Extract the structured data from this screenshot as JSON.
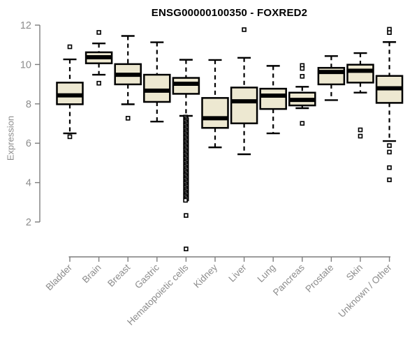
{
  "chart_data": {
    "type": "boxplot",
    "title": "ENSG00000100350 - FOXRED2",
    "xlabel": "",
    "ylabel": "Expression",
    "ylim": [
      2,
      12
    ],
    "yticks": [
      2,
      4,
      6,
      8,
      10,
      12
    ],
    "grid": false,
    "legend": "none",
    "colors": {
      "box_fill": "#EDE8D1",
      "box_stroke": "#000000",
      "median": "#000000",
      "whisker": "#000000",
      "outlier": "#000000",
      "axis_line": "#7d7d7d",
      "tick_label": "#8c8c8c",
      "title": "#000000",
      "background": "#ffffff"
    },
    "categories": [
      "Bladder",
      "Brain",
      "Breast",
      "Gastric",
      "Hematopoietic cells",
      "Kidney",
      "Liver",
      "Lung",
      "Pancreas",
      "Prostate",
      "Skin",
      "Unknown / Other"
    ],
    "series": [
      {
        "name": "Bladder",
        "whisker_low": 6.5,
        "q1": 7.98,
        "median": 8.43,
        "q3": 9.08,
        "whisker_high": 10.26,
        "outliers": [
          10.9,
          6.33
        ]
      },
      {
        "name": "Brain",
        "whisker_low": 9.48,
        "q1": 10.06,
        "median": 10.37,
        "q3": 10.62,
        "whisker_high": 11.07,
        "outliers": [
          11.63,
          9.05
        ]
      },
      {
        "name": "Breast",
        "whisker_low": 7.98,
        "q1": 8.99,
        "median": 9.48,
        "q3": 10.02,
        "whisker_high": 11.45,
        "outliers": [
          7.27
        ]
      },
      {
        "name": "Gastric",
        "whisker_low": 7.1,
        "q1": 8.1,
        "median": 8.67,
        "q3": 9.48,
        "whisker_high": 11.13,
        "outliers": []
      },
      {
        "name": "Hematopoietic cells",
        "whisker_low": 7.39,
        "q1": 8.51,
        "median": 9.02,
        "q3": 9.32,
        "whisker_high": 10.24,
        "outliers": [
          2.33,
          0.63
        ],
        "outlier_band": {
          "from": 7.33,
          "to": 3.1,
          "note": "dense column of overlapping outlier points"
        }
      },
      {
        "name": "Kidney",
        "whisker_low": 5.79,
        "q1": 6.78,
        "median": 7.27,
        "q3": 8.3,
        "whisker_high": 10.23,
        "outliers": []
      },
      {
        "name": "Liver",
        "whisker_low": 5.44,
        "q1": 7.01,
        "median": 8.13,
        "q3": 8.83,
        "whisker_high": 10.34,
        "outliers": [
          11.77
        ]
      },
      {
        "name": "Lung",
        "whisker_low": 6.5,
        "q1": 7.74,
        "median": 8.42,
        "q3": 8.77,
        "whisker_high": 9.93,
        "outliers": []
      },
      {
        "name": "Pancreas",
        "whisker_low": 7.78,
        "q1": 7.92,
        "median": 8.2,
        "q3": 8.57,
        "whisker_high": 8.87,
        "outliers": [
          9.95,
          9.8,
          9.4,
          7.01
        ]
      },
      {
        "name": "Prostate",
        "whisker_low": 8.19,
        "q1": 8.99,
        "median": 9.62,
        "q3": 9.83,
        "whisker_high": 10.43,
        "outliers": []
      },
      {
        "name": "Skin",
        "whisker_low": 8.57,
        "q1": 9.08,
        "median": 9.68,
        "q3": 9.99,
        "whisker_high": 10.58,
        "outliers": [
          6.68,
          6.36
        ]
      },
      {
        "name": "Unknown / Other",
        "whisker_low": 6.11,
        "q1": 8.05,
        "median": 8.79,
        "q3": 9.42,
        "whisker_high": 11.14,
        "outliers": [
          11.79,
          11.62,
          5.88,
          5.55,
          4.76,
          4.14
        ]
      }
    ]
  }
}
